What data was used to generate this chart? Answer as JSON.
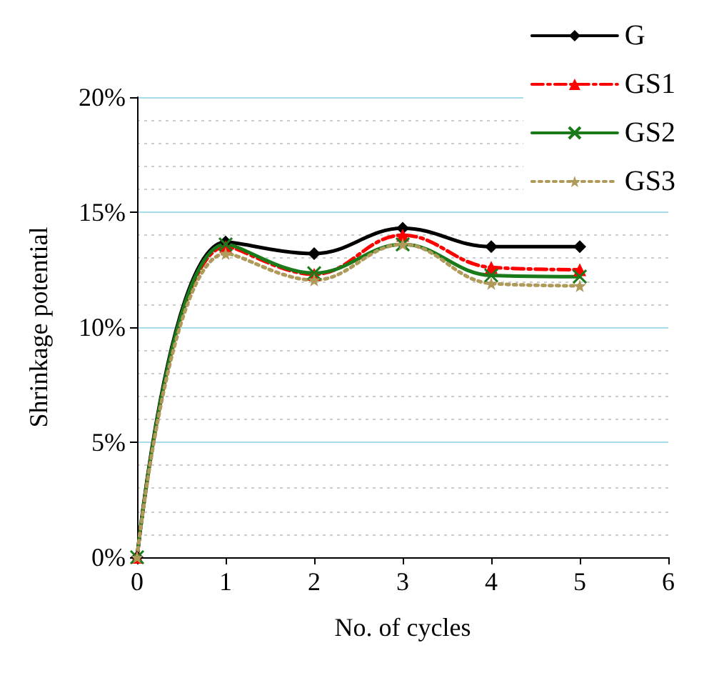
{
  "chart_data": {
    "type": "line",
    "xlabel": "No. of cycles",
    "ylabel": "Shrinkage potential",
    "x": [
      0,
      1,
      2,
      3,
      4,
      5
    ],
    "series": [
      {
        "name": "G",
        "color": "#000000",
        "marker": "diamond",
        "line_style": "solid",
        "values": [
          0,
          13.7,
          13.2,
          14.3,
          13.5,
          13.5
        ]
      },
      {
        "name": "GS1",
        "color": "#ff0000",
        "marker": "triangle",
        "line_style": "dashed",
        "values": [
          0,
          13.5,
          12.3,
          14.0,
          12.6,
          12.5
        ]
      },
      {
        "name": "GS2",
        "color": "#1a7a1a",
        "marker": "cross",
        "line_style": "solid",
        "values": [
          0,
          13.6,
          12.35,
          13.6,
          12.25,
          12.2
        ]
      },
      {
        "name": "GS3",
        "color": "#b09a5a",
        "marker": "star",
        "line_style": "dotted",
        "values": [
          0,
          13.2,
          12.05,
          13.6,
          11.9,
          11.8
        ]
      }
    ],
    "xlim": [
      0,
      6
    ],
    "xticks": [
      0,
      1,
      2,
      3,
      4,
      5,
      6
    ],
    "ylim": [
      0,
      20
    ],
    "yticks": [
      {
        "value": 0,
        "label": "0%"
      },
      {
        "value": 5,
        "label": "5%"
      },
      {
        "value": 10,
        "label": "10%"
      },
      {
        "value": 15,
        "label": "15%"
      },
      {
        "value": 20,
        "label": "20%"
      }
    ],
    "grid": "y",
    "legend": "top right"
  }
}
